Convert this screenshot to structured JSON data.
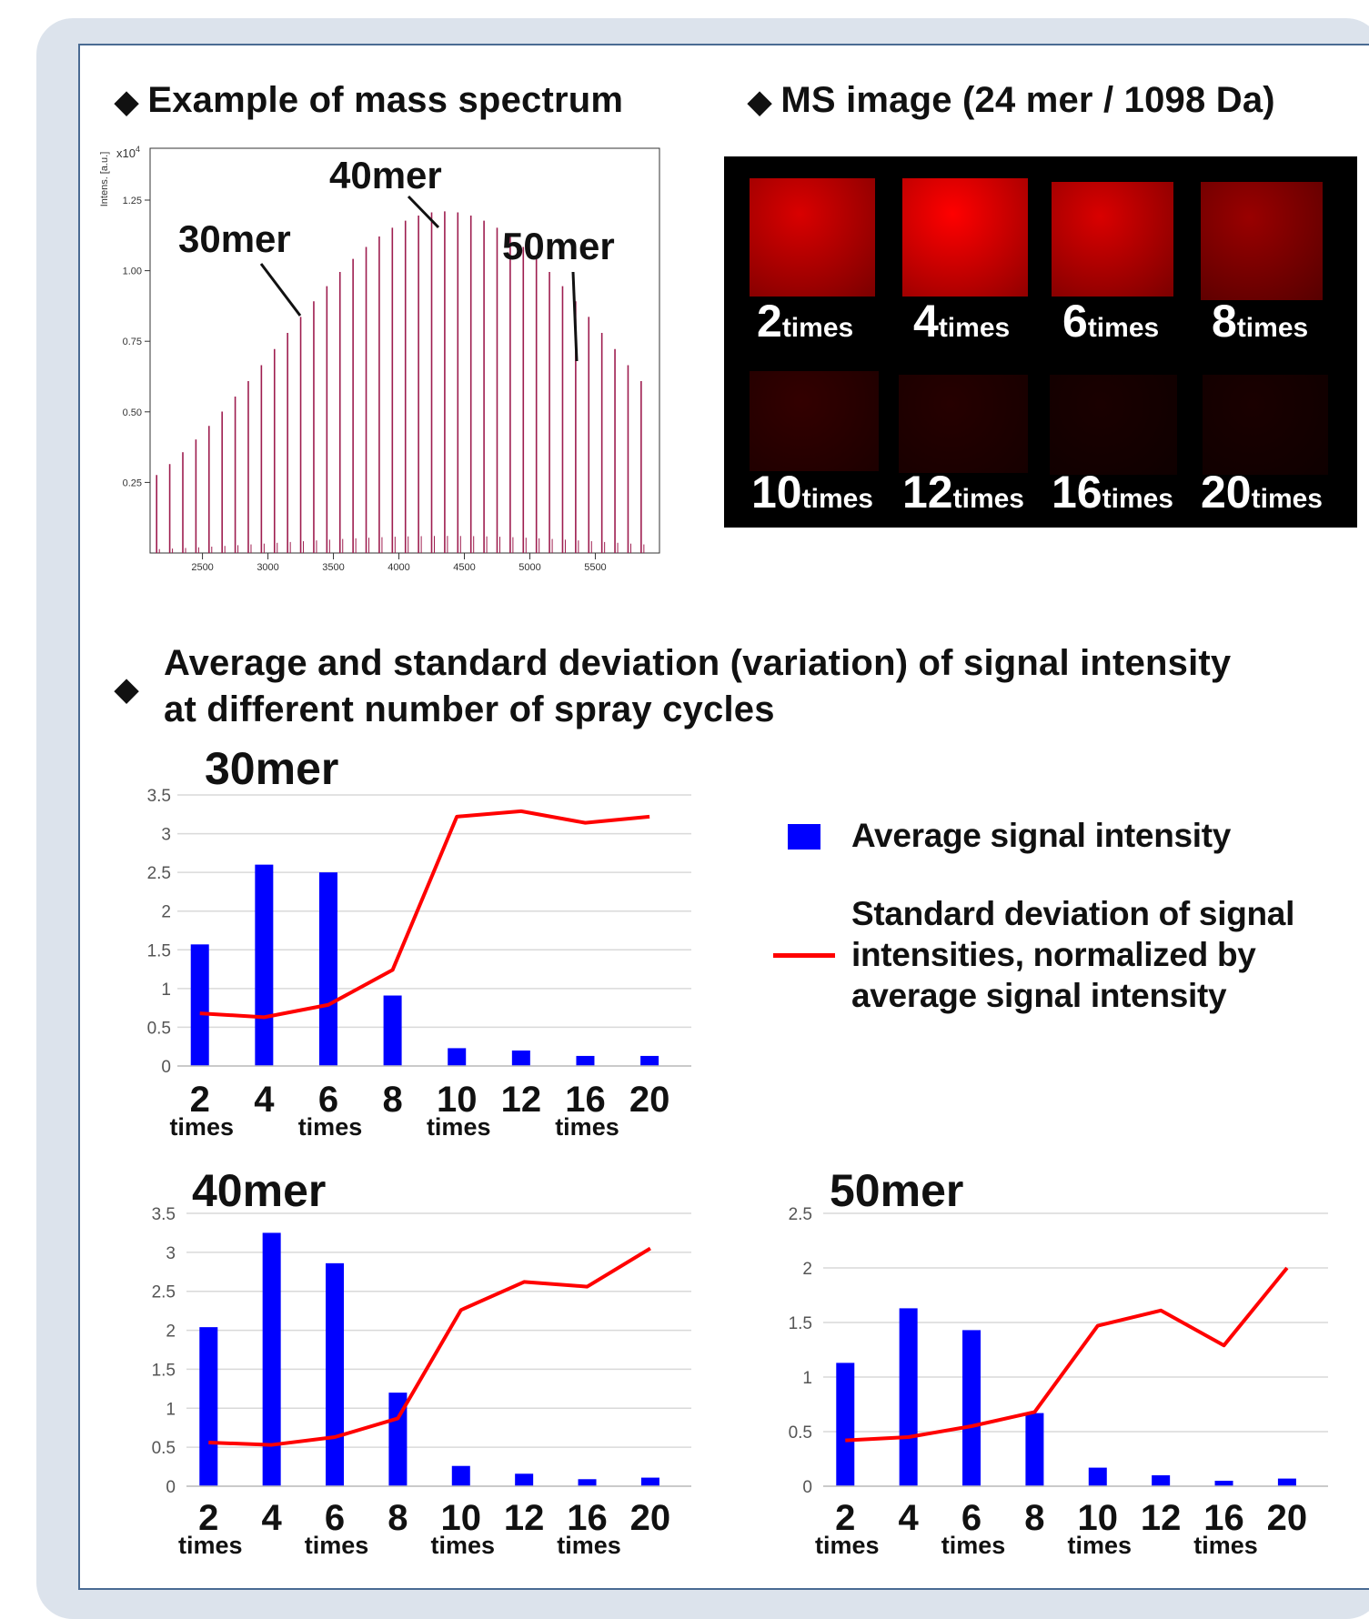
{
  "headings": {
    "mass_spectrum": "Example of mass spectrum",
    "ms_image": "MS image (24 mer / 1098 Da)",
    "avg_sd_line1": "Average and standard deviation (variation) of signal intensity",
    "avg_sd_line2": "at different number of spray cycles",
    "bullet": "◆"
  },
  "spectrum": {
    "ylabel": "Intens. [a.u.]",
    "scale": "x10",
    "scale_exp": "4",
    "yticks": [
      "1.25",
      "1.00",
      "0.75",
      "0.50",
      "0.25"
    ],
    "xticks": [
      "2500",
      "3000",
      "3500",
      "4000",
      "4500",
      "5000",
      "5500"
    ],
    "annotations": [
      "30mer",
      "40mer",
      "50mer"
    ],
    "peak_color": "#9e1d4f"
  },
  "ms_image": {
    "tiles": [
      {
        "num": "2",
        "unit": "times",
        "intensity": 0.85
      },
      {
        "num": "4",
        "unit": "times",
        "intensity": 1.0
      },
      {
        "num": "6",
        "unit": "times",
        "intensity": 0.85
      },
      {
        "num": "8",
        "unit": "times",
        "intensity": 0.6
      },
      {
        "num": "10",
        "unit": "times",
        "intensity": 0.2
      },
      {
        "num": "12",
        "unit": "times",
        "intensity": 0.15
      },
      {
        "num": "16",
        "unit": "times",
        "intensity": 0.1
      },
      {
        "num": "20",
        "unit": "times",
        "intensity": 0.1
      }
    ]
  },
  "legend": {
    "avg": "Average signal intensity",
    "sd_line1": "Standard deviation of signal",
    "sd_line2": "intensities, normalized by",
    "sd_line3": "average signal intensity",
    "avg_color": "#0000ff",
    "sd_color": "#ff0000"
  },
  "chart_data": [
    {
      "type": "bar",
      "title": "30mer",
      "categories": [
        "2",
        "4",
        "6",
        "8",
        "10",
        "12",
        "16",
        "20"
      ],
      "category_sublabels": [
        "times",
        "",
        "times",
        "",
        "times",
        "",
        "times",
        ""
      ],
      "series": [
        {
          "name": "Average signal intensity",
          "type": "bar",
          "values": [
            1.57,
            2.6,
            2.5,
            0.91,
            0.23,
            0.2,
            0.13,
            0.13
          ]
        },
        {
          "name": "Standard deviation of signal intensities, normalized by average signal intensity",
          "type": "line",
          "values": [
            0.68,
            0.63,
            0.79,
            1.24,
            3.22,
            3.29,
            3.14,
            3.22
          ]
        }
      ],
      "yticks": [
        "0",
        "0.5",
        "1",
        "1.5",
        "2",
        "2.5",
        "3",
        "3.5"
      ],
      "ylim": [
        0,
        3.5
      ],
      "grid": true
    },
    {
      "type": "bar",
      "title": "40mer",
      "categories": [
        "2",
        "4",
        "6",
        "8",
        "10",
        "12",
        "16",
        "20"
      ],
      "category_sublabels": [
        "times",
        "",
        "times",
        "",
        "times",
        "",
        "times",
        ""
      ],
      "series": [
        {
          "name": "Average signal intensity",
          "type": "bar",
          "values": [
            2.04,
            3.25,
            2.86,
            1.2,
            0.26,
            0.16,
            0.09,
            0.11
          ]
        },
        {
          "name": "Standard deviation of signal intensities, normalized by average signal intensity",
          "type": "line",
          "values": [
            0.56,
            0.53,
            0.63,
            0.87,
            2.26,
            2.62,
            2.56,
            3.05
          ]
        }
      ],
      "yticks": [
        "0",
        "0.5",
        "1",
        "1.5",
        "2",
        "2.5",
        "3",
        "3.5"
      ],
      "ylim": [
        0,
        3.5
      ],
      "grid": true
    },
    {
      "type": "bar",
      "title": "50mer",
      "categories": [
        "2",
        "4",
        "6",
        "8",
        "10",
        "12",
        "16",
        "20"
      ],
      "category_sublabels": [
        "times",
        "",
        "times",
        "",
        "times",
        "",
        "times",
        ""
      ],
      "series": [
        {
          "name": "Average signal intensity",
          "type": "bar",
          "values": [
            1.13,
            1.63,
            1.43,
            0.67,
            0.17,
            0.1,
            0.05,
            0.07
          ]
        },
        {
          "name": "Standard deviation of signal intensities, normalized by average signal intensity",
          "type": "line",
          "values": [
            0.42,
            0.45,
            0.55,
            0.68,
            1.47,
            1.61,
            1.29,
            2.0
          ]
        }
      ],
      "yticks": [
        "0",
        "0.5",
        "1",
        "1.5",
        "2",
        "2.5"
      ],
      "ylim": [
        0,
        2.5
      ],
      "grid": true
    }
  ]
}
